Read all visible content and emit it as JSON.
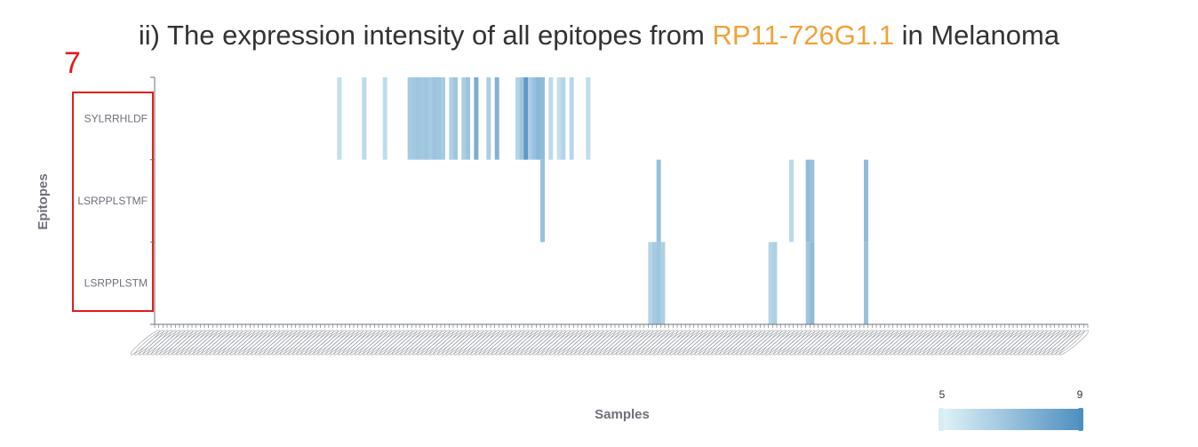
{
  "header": {
    "marker": "7",
    "title_prefix": "ii) The expression intensity of all epitopes from ",
    "title_gene": "RP11-726G1.1",
    "title_suffix": " in Melanoma"
  },
  "colors": {
    "highlight": "#f0a23a",
    "low": "#e0f3f8",
    "high": "#4f8fc0",
    "marker": "#e01e1e"
  },
  "chart_data": {
    "type": "heatmap",
    "title": "ii) The expression intensity of all epitopes from RP11-726G1.1 in Melanoma",
    "xlabel": "Samples",
    "ylabel": "Epitopes",
    "y_categories": [
      "LSRPPLSTM",
      "LSRPPLSTMF",
      "SYLRRHLDF"
    ],
    "sample_count": 225,
    "visual_map": {
      "min": 5,
      "max": 9,
      "min_label": "5",
      "max_label": "9"
    },
    "cells": [
      [
        44,
        2,
        5.8
      ],
      [
        50,
        2,
        6.0
      ],
      [
        55,
        2,
        5.9
      ],
      [
        61,
        2,
        6.6
      ],
      [
        62,
        2,
        6.7
      ],
      [
        63,
        2,
        6.8
      ],
      [
        64,
        2,
        6.7
      ],
      [
        65,
        2,
        6.8
      ],
      [
        66,
        2,
        6.6
      ],
      [
        67,
        2,
        6.9
      ],
      [
        68,
        2,
        6.8
      ],
      [
        69,
        2,
        6.6
      ],
      [
        71,
        2,
        6.4
      ],
      [
        72,
        2,
        6.8
      ],
      [
        74,
        2,
        6.5
      ],
      [
        75,
        2,
        6.9
      ],
      [
        77,
        2,
        7.8
      ],
      [
        80,
        2,
        6.5
      ],
      [
        82,
        2,
        7.6
      ],
      [
        87,
        2,
        6.2
      ],
      [
        88,
        2,
        6.8
      ],
      [
        89,
        2,
        8.6
      ],
      [
        90,
        2,
        6.5
      ],
      [
        91,
        2,
        7.0
      ],
      [
        92,
        2,
        7.4
      ],
      [
        93,
        2,
        7.2
      ],
      [
        95,
        2,
        6.0
      ],
      [
        97,
        2,
        5.8
      ],
      [
        98,
        2,
        6.2
      ],
      [
        100,
        2,
        6.1
      ],
      [
        104,
        2,
        5.9
      ],
      [
        93,
        1,
        7.0
      ],
      [
        121,
        1,
        7.0
      ],
      [
        153,
        1,
        6.0
      ],
      [
        157,
        1,
        7.2
      ],
      [
        158,
        1,
        7.0
      ],
      [
        171,
        1,
        7.2
      ],
      [
        119,
        0,
        6.2
      ],
      [
        120,
        0,
        6.6
      ],
      [
        121,
        0,
        6.8
      ],
      [
        122,
        0,
        6.4
      ],
      [
        148,
        0,
        6.2
      ],
      [
        149,
        0,
        6.4
      ],
      [
        157,
        0,
        6.8
      ],
      [
        158,
        0,
        7.2
      ],
      [
        171,
        0,
        7.0
      ]
    ]
  }
}
